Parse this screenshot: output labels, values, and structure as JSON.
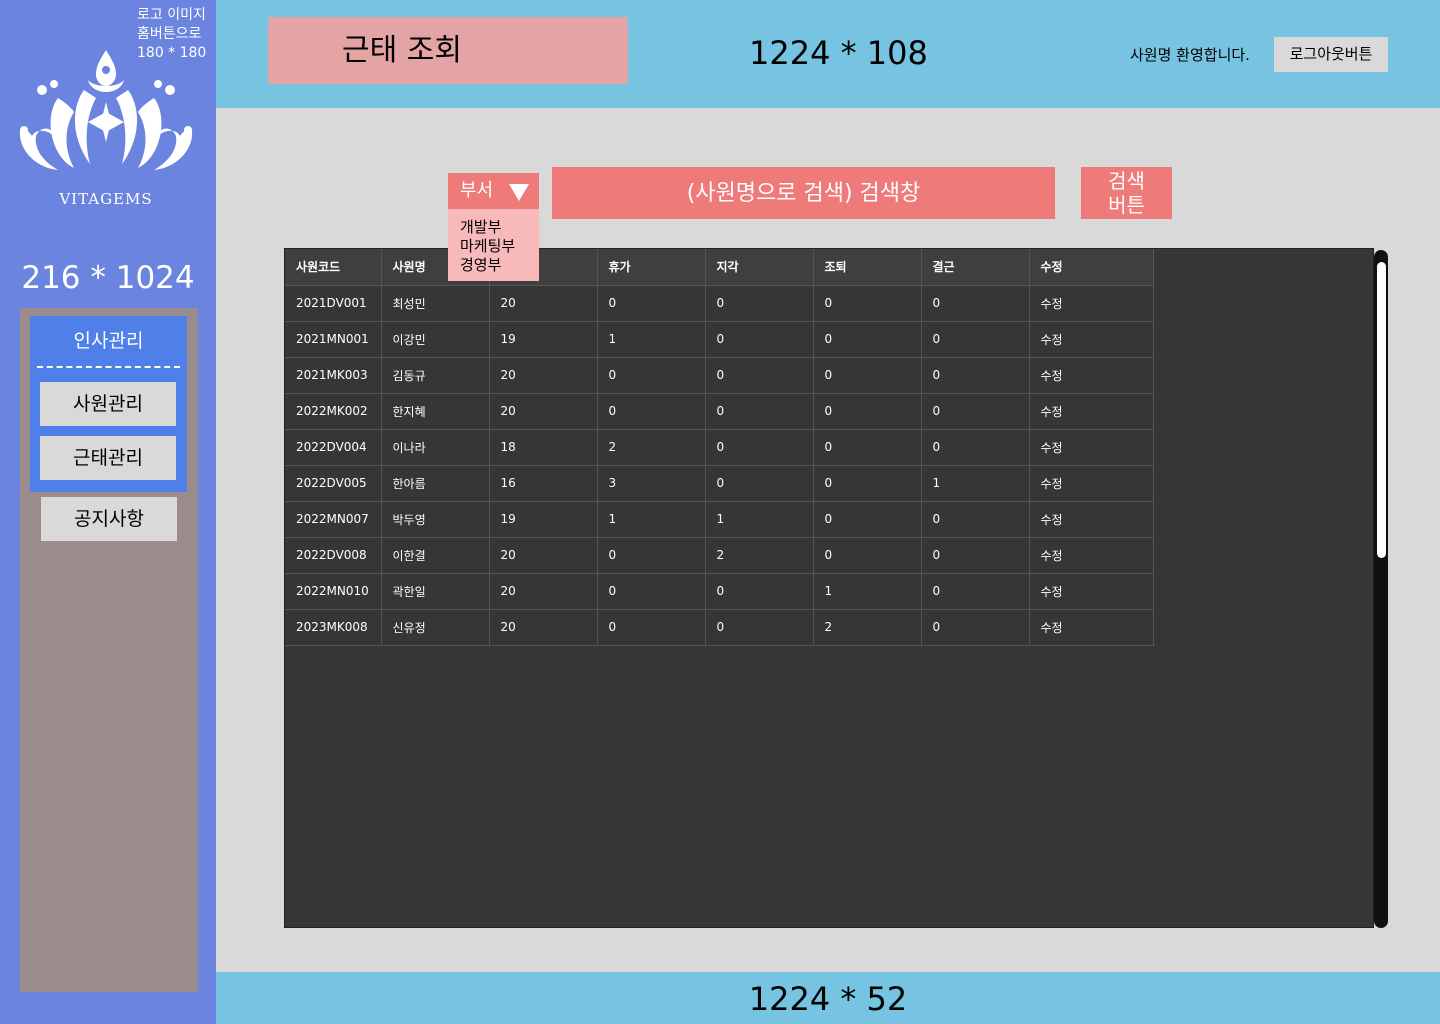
{
  "sidebar": {
    "logo_note": "로고 이미지\n홈버튼으로\n180 * 180",
    "logo_text": "VITAGEMS",
    "dimension": "216 * 1024",
    "group_title": "인사관리",
    "items": [
      {
        "label": "사원관리"
      },
      {
        "label": "근태관리"
      }
    ],
    "notice_label": "공지사항",
    "colors": {
      "sidebar": "#6b84e0",
      "panel": "#998c8a",
      "group": "#4f7fe8"
    }
  },
  "header": {
    "title": "근태 조회",
    "dimension": "1224 * 108",
    "welcome": "사원명 환영합니다.",
    "logout_label": "로그아웃버튼",
    "color": "#77c3e2"
  },
  "footer": {
    "dimension": "1224 * 52"
  },
  "search": {
    "dept_label": "부서",
    "dept_options": [
      "개발부",
      "마케팅부",
      "경영부"
    ],
    "placeholder": "(사원명으로 검색) 검색창",
    "button_label": "검색\n버튼",
    "color": "#ee7a7a"
  },
  "table": {
    "headers": [
      "사원코드",
      "사원명",
      "",
      "휴가",
      "지각",
      "조퇴",
      "결근",
      "수정"
    ],
    "rows": [
      [
        "2021DV001",
        "최성민",
        "20",
        "0",
        "0",
        "0",
        "0",
        "수정"
      ],
      [
        "2021MN001",
        "이강민",
        "19",
        "1",
        "0",
        "0",
        "0",
        "수정"
      ],
      [
        "2021MK003",
        "김동규",
        "20",
        "0",
        "0",
        "0",
        "0",
        "수정"
      ],
      [
        "2022MK002",
        "한지혜",
        "20",
        "0",
        "0",
        "0",
        "0",
        "수정"
      ],
      [
        "2022DV004",
        "이나라",
        "18",
        "2",
        "0",
        "0",
        "0",
        "수정"
      ],
      [
        "2022DV005",
        "한아름",
        "16",
        "3",
        "0",
        "0",
        "1",
        "수정"
      ],
      [
        "2022MN007",
        "박두영",
        "19",
        "1",
        "1",
        "0",
        "0",
        "수정"
      ],
      [
        "2022DV008",
        "이한결",
        "20",
        "0",
        "2",
        "0",
        "0",
        "수정"
      ],
      [
        "2022MN010",
        "곽한일",
        "20",
        "0",
        "0",
        "1",
        "0",
        "수정"
      ],
      [
        "2023MK008",
        "신유정",
        "20",
        "0",
        "0",
        "2",
        "0",
        "수정"
      ]
    ]
  }
}
